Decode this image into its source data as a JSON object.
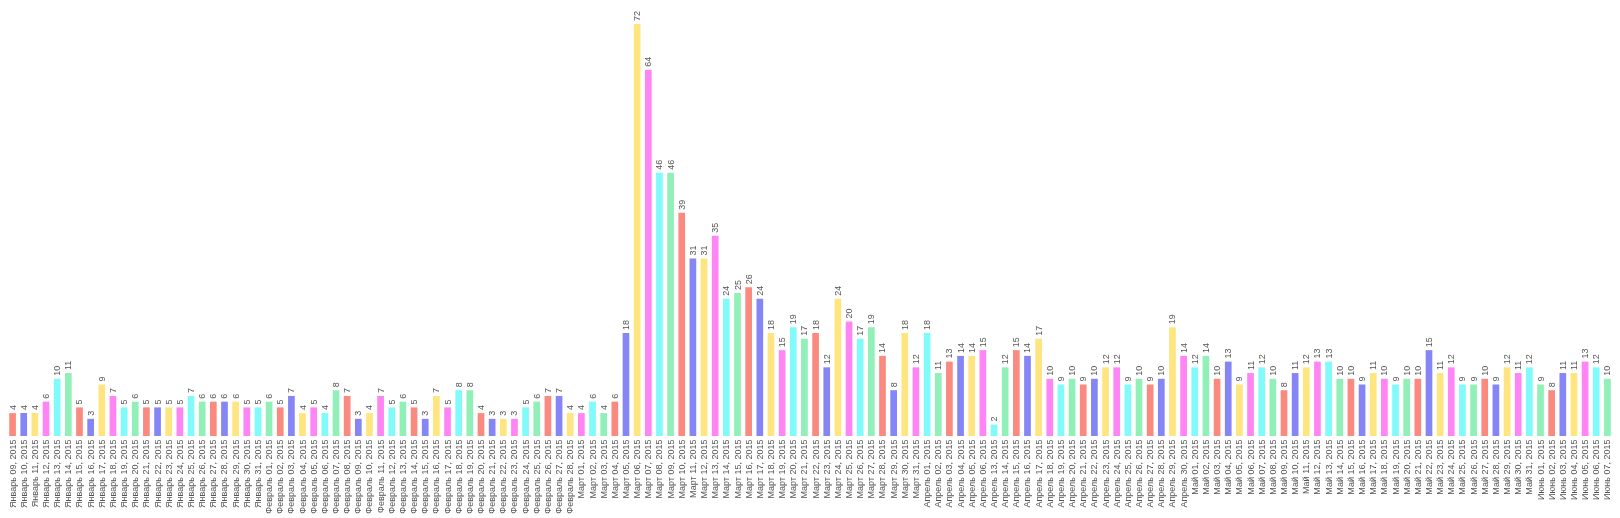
{
  "chart_data": {
    "type": "bar",
    "data_labels": true,
    "categories": [
      "Январь 09, 2015",
      "Январь 10, 2015",
      "Январь 11, 2015",
      "Январь 12, 2015",
      "Январь 13, 2015",
      "Январь 14, 2015",
      "Январь 15, 2015",
      "Январь 16, 2015",
      "Январь 17, 2015",
      "Январь 18, 2015",
      "Январь 19, 2015",
      "Январь 20, 2015",
      "Январь 21, 2015",
      "Январь 22, 2015",
      "Январь 23, 2015",
      "Январь 24, 2015",
      "Январь 25, 2015",
      "Январь 26, 2015",
      "Январь 27, 2015",
      "Январь 28, 2015",
      "Январь 29, 2015",
      "Январь 30, 2015",
      "Январь 31, 2015",
      "Февраль 01, 2015",
      "Февраль 02, 2015",
      "Февраль 03, 2015",
      "Февраль 04, 2015",
      "Февраль 05, 2015",
      "Февраль 06, 2015",
      "Февраль 07, 2015",
      "Февраль 08, 2015",
      "Февраль 09, 2015",
      "Февраль 10, 2015",
      "Февраль 11, 2015",
      "Февраль 12, 2015",
      "Февраль 13, 2015",
      "Февраль 14, 2015",
      "Февраль 15, 2015",
      "Февраль 16, 2015",
      "Февраль 17, 2015",
      "Февраль 18, 2015",
      "Февраль 19, 2015",
      "Февраль 20, 2015",
      "Февраль 21, 2015",
      "Февраль 22, 2015",
      "Февраль 23, 2015",
      "Февраль 24, 2015",
      "Февраль 25, 2015",
      "Февраль 26, 2015",
      "Февраль 27, 2015",
      "Февраль 28, 2015",
      "Март 01, 2015",
      "Март 02, 2015",
      "Март 03, 2015",
      "Март 04, 2015",
      "Март 05, 2015",
      "Март 06, 2015",
      "Март 07, 2015",
      "Март 08, 2015",
      "Март 09, 2015",
      "Март 10, 2015",
      "Март 11, 2015",
      "Март 12, 2015",
      "Март 13, 2015",
      "Март 14, 2015",
      "Март 15, 2015",
      "Март 16, 2015",
      "Март 17, 2015",
      "Март 18, 2015",
      "Март 19, 2015",
      "Март 20, 2015",
      "Март 21, 2015",
      "Март 22, 2015",
      "Март 23, 2015",
      "Март 24, 2015",
      "Март 25, 2015",
      "Март 26, 2015",
      "Март 27, 2015",
      "Март 28, 2015",
      "Март 29, 2015",
      "Март 30, 2015",
      "Март 31, 2015",
      "Апрель 01, 2015",
      "Апрель 02, 2015",
      "Апрель 03, 2015",
      "Апрель 04, 2015",
      "Апрель 05, 2015",
      "Апрель 06, 2015",
      "Апрель 13, 2015",
      "Апрель 14, 2015",
      "Апрель 15, 2015",
      "Апрель 16, 2015",
      "Апрель 17, 2015",
      "Апрель 18, 2015",
      "Апрель 19, 2015",
      "Апрель 20, 2015",
      "Апрель 21, 2015",
      "Апрель 22, 2015",
      "Апрель 23, 2015",
      "Апрель 24, 2015",
      "Апрель 25, 2015",
      "Апрель 26, 2015",
      "Апрель 27, 2015",
      "Апрель 28, 2015",
      "Апрель 29, 2015",
      "Апрель 30, 2015",
      "Май 01, 2015",
      "Май 02, 2015",
      "Май 03, 2015",
      "Май 04, 2015",
      "Май 05, 2015",
      "Май 06, 2015",
      "Май 07, 2015",
      "Май 08, 2015",
      "Май 09, 2015",
      "Май 10, 2015",
      "Май 11, 2015",
      "Май 12, 2015",
      "Май 13, 2015",
      "Май 14, 2015",
      "Май 15, 2015",
      "Май 16, 2015",
      "Май 17, 2015",
      "Май 18, 2015",
      "Май 19, 2015",
      "Май 20, 2015",
      "Май 21, 2015",
      "Май 22, 2015",
      "Май 23, 2015",
      "Май 24, 2015",
      "Май 25, 2015",
      "Май 26, 2015",
      "Май 27, 2015",
      "Май 28, 2015",
      "Май 29, 2015",
      "Май 30, 2015",
      "Май 31, 2015",
      "Июнь 01, 2015",
      "Июнь 02, 2015",
      "Июнь 03, 2015",
      "Июнь 04, 2015",
      "Июнь 05, 2015",
      "Июнь 06, 2015",
      "Июнь 07, 2015"
    ],
    "values": [
      4,
      4,
      4,
      6,
      10,
      11,
      5,
      3,
      9,
      7,
      5,
      6,
      5,
      5,
      5,
      5,
      7,
      6,
      6,
      6,
      6,
      5,
      5,
      6,
      5,
      7,
      4,
      5,
      4,
      8,
      7,
      3,
      4,
      7,
      5,
      6,
      5,
      3,
      7,
      5,
      8,
      8,
      4,
      3,
      3,
      3,
      5,
      6,
      7,
      7,
      4,
      4,
      6,
      4,
      6,
      18,
      72,
      64,
      46,
      46,
      39,
      31,
      31,
      35,
      24,
      25,
      26,
      24,
      18,
      15,
      19,
      17,
      18,
      12,
      24,
      20,
      17,
      19,
      14,
      8,
      18,
      12,
      18,
      11,
      13,
      14,
      14,
      15,
      2,
      12,
      15,
      14,
      17,
      10,
      9,
      10,
      9,
      10,
      12,
      12,
      9,
      10,
      9,
      10,
      19,
      14,
      12,
      14,
      10,
      13,
      9,
      11,
      12,
      10,
      8,
      11,
      12,
      13,
      13,
      10,
      10,
      9,
      11,
      10,
      9,
      10,
      10,
      15,
      11,
      12,
      9,
      9,
      10,
      9,
      12,
      11,
      12,
      9,
      8,
      11,
      11,
      13,
      12,
      10
    ],
    "colors": [
      "#fa8a80",
      "#8585f5",
      "#ffe580",
      "#ff85f5",
      "#80fafa",
      "#90f0b8",
      "#fa8a80",
      "#8585f5",
      "#ffe580",
      "#ff85f5",
      "#80fafa",
      "#90f0b8",
      "#fa8a80",
      "#8585f5",
      "#ffe580",
      "#ff85f5",
      "#80fafa",
      "#90f0b8",
      "#fa8a80",
      "#8585f5",
      "#ffe580",
      "#ff85f5",
      "#80fafa",
      "#90f0b8",
      "#fa8a80",
      "#8585f5",
      "#ffe580",
      "#ff85f5",
      "#80fafa",
      "#90f0b8",
      "#fa8a80",
      "#8585f5",
      "#ffe580",
      "#ff85f5",
      "#80fafa",
      "#90f0b8",
      "#fa8a80",
      "#8585f5",
      "#ffe580",
      "#ff85f5",
      "#80fafa",
      "#90f0b8",
      "#fa8a80",
      "#8585f5",
      "#ffe580",
      "#ff85f5",
      "#80fafa",
      "#90f0b8",
      "#fa8a80",
      "#8585f5",
      "#ffe580",
      "#ff85f5",
      "#80fafa",
      "#90f0b8",
      "#fa8a80",
      "#8585f5",
      "#ffe580",
      "#ff85f5",
      "#80fafa",
      "#90f0b8",
      "#fa8a80",
      "#8585f5",
      "#ffe580",
      "#ff85f5",
      "#80fafa",
      "#90f0b8",
      "#fa8a80",
      "#8585f5",
      "#ffe580",
      "#ff85f5",
      "#80fafa",
      "#90f0b8",
      "#fa8a80",
      "#8585f5",
      "#ffe580",
      "#ff85f5",
      "#80fafa",
      "#90f0b8",
      "#fa8a80",
      "#8585f5",
      "#ffe580",
      "#ff85f5",
      "#80fafa",
      "#90f0b8",
      "#fa8a80",
      "#8585f5",
      "#ffe580",
      "#ff85f5",
      "#80fafa",
      "#90f0b8",
      "#fa8a80",
      "#8585f5",
      "#ffe580",
      "#ff85f5",
      "#80fafa",
      "#90f0b8",
      "#fa8a80",
      "#8585f5",
      "#ffe580",
      "#ff85f5",
      "#80fafa",
      "#90f0b8",
      "#fa8a80",
      "#8585f5",
      "#ffe580",
      "#ff85f5",
      "#80fafa",
      "#90f0b8",
      "#fa8a80",
      "#8585f5",
      "#ffe580",
      "#ff85f5",
      "#80fafa",
      "#90f0b8",
      "#fa8a80",
      "#8585f5",
      "#ffe580",
      "#ff85f5",
      "#80fafa",
      "#90f0b8",
      "#fa8a80",
      "#8585f5",
      "#ffe580",
      "#ff85f5",
      "#80fafa",
      "#90f0b8",
      "#fa8a80",
      "#8585f5",
      "#ffe580",
      "#ff85f5",
      "#80fafa",
      "#90f0b8",
      "#fa8a80",
      "#8585f5",
      "#ffe580",
      "#ff85f5",
      "#80fafa",
      "#90f0b8",
      "#fa8a80",
      "#8585f5",
      "#ffe580",
      "#ff85f5",
      "#80fafa",
      "#90f0b8"
    ]
  }
}
